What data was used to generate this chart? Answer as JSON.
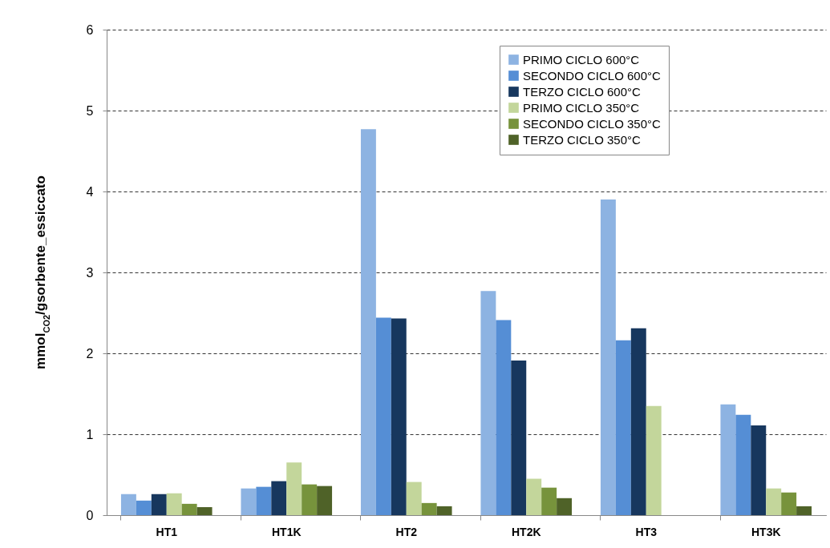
{
  "chart_data": {
    "type": "bar",
    "ylabel": "mmol$_{CO2}$/gsorbente_essiccato",
    "categories": [
      "HT1",
      "HT1K",
      "HT2",
      "HT2K",
      "HT3",
      "HT3K"
    ],
    "series": [
      {
        "name": "PRIMO CICLO 600°C",
        "color": "#8db3e2",
        "values": [
          0.26,
          0.33,
          4.77,
          2.77,
          3.9,
          1.37
        ]
      },
      {
        "name": "SECONDO CICLO 600°C",
        "color": "#558ed5",
        "values": [
          0.18,
          0.35,
          2.44,
          2.41,
          2.16,
          1.24
        ]
      },
      {
        "name": "TERZO CICLO 600°C",
        "color": "#17375e",
        "values": [
          0.26,
          0.42,
          2.43,
          1.91,
          2.31,
          1.11
        ]
      },
      {
        "name": "PRIMO CICLO 350°C",
        "color": "#c3d69b",
        "values": [
          0.27,
          0.65,
          0.41,
          0.45,
          1.35,
          0.33
        ]
      },
      {
        "name": "SECONDO CICLO 350°C",
        "color": "#77933c",
        "values": [
          0.14,
          0.38,
          0.15,
          0.34,
          null,
          0.28
        ]
      },
      {
        "name": "TERZO CICLO 350°C",
        "color": "#4f6228",
        "values": [
          0.1,
          0.36,
          0.11,
          0.21,
          null,
          0.11
        ]
      }
    ],
    "ylim": [
      0,
      6
    ],
    "yticks": [
      0,
      1,
      2,
      3,
      4,
      5,
      6
    ],
    "grid": "y",
    "legend": "top right"
  }
}
